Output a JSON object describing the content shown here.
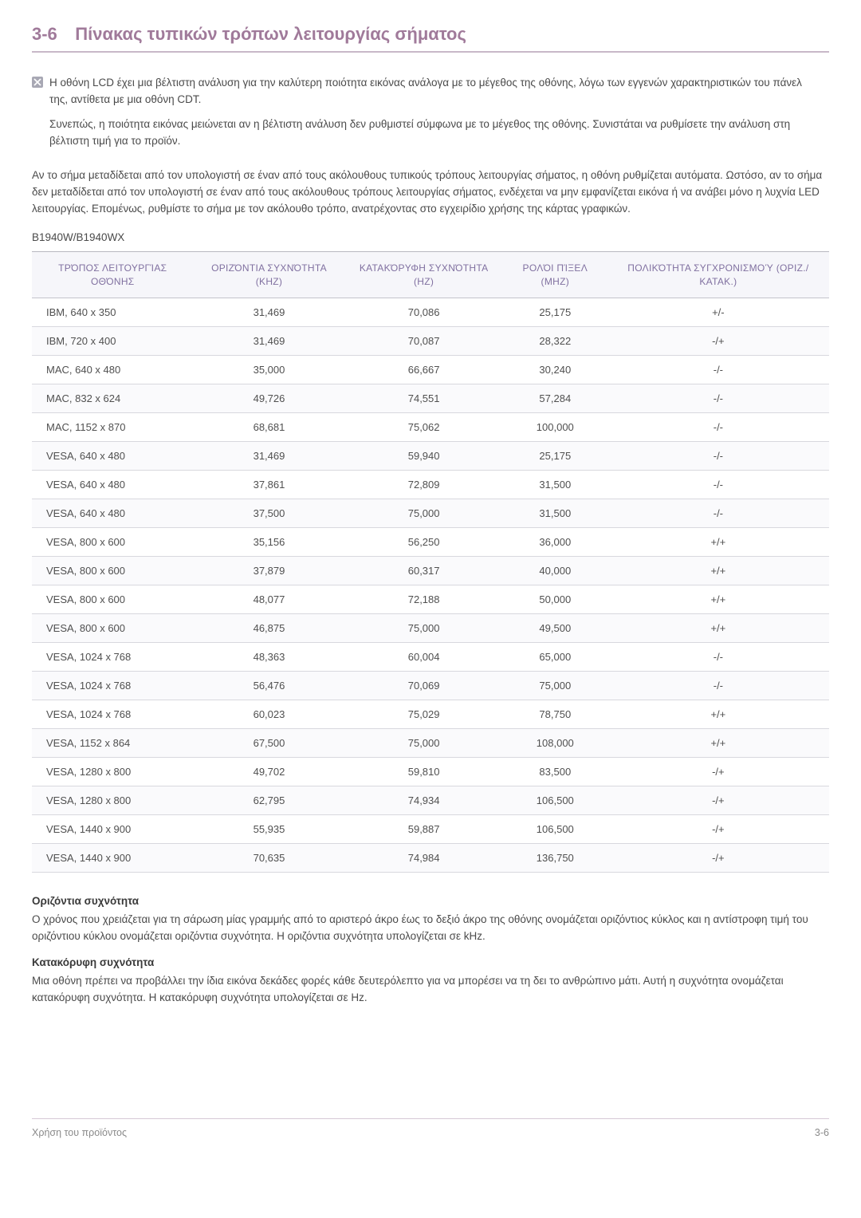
{
  "heading": {
    "number": "3-6",
    "title": "Πίνακας τυπικών τρόπων λειτουργίας σήματος"
  },
  "note": {
    "para1": "Η οθόνη LCD έχει μια βέλτιστη ανάλυση για την καλύτερη ποιότητα εικόνας ανάλογα με το μέγεθος της οθόνης, λόγω των εγγενών χαρακτηριστικών του πάνελ της, αντίθετα με μια οθόνη CDT.",
    "para2": "Συνεπώς, η ποιότητα εικόνας μειώνεται αν η βέλτιστη ανάλυση δεν ρυθμιστεί σύμφωνα με το μέγεθος της οθόνης. Συνιστάται να ρυθμίσετε την ανάλυση στη βέλτιστη τιμή για το προϊόν."
  },
  "bodyPara": "Αν το σήμα μεταδίδεται από τον υπολογιστή σε έναν από τους ακόλουθους τυπικούς τρόπους λειτουργίας σήματος, η οθόνη ρυθμίζεται αυτόματα. Ωστόσο, αν το σήμα δεν μεταδίδεται από τον υπολογιστή σε έναν από τους ακόλουθους τρόπους λειτουργίας σήματος, ενδέχεται να μην εμφανίζεται εικόνα ή να ανάβει μόνο η λυχνία LED λειτουργίας. Επομένως, ρυθμίστε το σήμα με τον ακόλουθο τρόπο, ανατρέχοντας στο εγχειρίδιο χρήσης της κάρτας γραφικών.",
  "modelLabel": "B1940W/B1940WX",
  "table": {
    "columns": [
      "ΤΡΌΠΟΣ ΛΕΙΤΟΥΡΓΊΑΣ ΟΘΌΝΗΣ",
      "ΟΡΙΖΌΝΤΙΑ ΣΥΧΝΌΤΗΤΑ (KHZ)",
      "ΚΑΤΑΚΌΡΥΦΗ ΣΥΧΝΌΤΗΤΑ (HZ)",
      "ΡΟΛΌΙ ΠΊΞΕΛ (MHZ)",
      "ΠΟΛΙΚΌΤΗΤΑ ΣΥΓΧΡΟΝΙΣΜΟΎ (ΟΡΙΖ./ΚΑΤΑΚ.)"
    ],
    "rows": [
      [
        "IBM, 640 x 350",
        "31,469",
        "70,086",
        "25,175",
        "+/-"
      ],
      [
        "IBM, 720 x 400",
        "31,469",
        "70,087",
        "28,322",
        "-/+"
      ],
      [
        "MAC, 640 x 480",
        "35,000",
        "66,667",
        "30,240",
        "-/-"
      ],
      [
        "MAC, 832 x 624",
        "49,726",
        "74,551",
        "57,284",
        "-/-"
      ],
      [
        "MAC, 1152 x 870",
        "68,681",
        "75,062",
        "100,000",
        "-/-"
      ],
      [
        "VESA, 640 x 480",
        "31,469",
        "59,940",
        "25,175",
        "-/-"
      ],
      [
        "VESA, 640 x 480",
        "37,861",
        "72,809",
        "31,500",
        "-/-"
      ],
      [
        "VESA, 640 x 480",
        "37,500",
        "75,000",
        "31,500",
        "-/-"
      ],
      [
        "VESA, 800 x 600",
        "35,156",
        "56,250",
        "36,000",
        "+/+"
      ],
      [
        "VESA, 800 x 600",
        "37,879",
        "60,317",
        "40,000",
        "+/+"
      ],
      [
        "VESA, 800 x 600",
        "48,077",
        "72,188",
        "50,000",
        "+/+"
      ],
      [
        "VESA, 800 x 600",
        "46,875",
        "75,000",
        "49,500",
        "+/+"
      ],
      [
        "VESA, 1024 x 768",
        "48,363",
        "60,004",
        "65,000",
        "-/-"
      ],
      [
        "VESA, 1024 x 768",
        "56,476",
        "70,069",
        "75,000",
        "-/-"
      ],
      [
        "VESA, 1024 x 768",
        "60,023",
        "75,029",
        "78,750",
        "+/+"
      ],
      [
        "VESA, 1152 x 864",
        "67,500",
        "75,000",
        "108,000",
        "+/+"
      ],
      [
        "VESA, 1280 x 800",
        "49,702",
        "59,810",
        "83,500",
        "-/+"
      ],
      [
        "VESA, 1280 x 800",
        "62,795",
        "74,934",
        "106,500",
        "-/+"
      ],
      [
        "VESA, 1440 x 900",
        "55,935",
        "59,887",
        "106,500",
        "-/+"
      ],
      [
        "VESA, 1440 x 900",
        "70,635",
        "74,984",
        "136,750",
        "-/+"
      ]
    ]
  },
  "defs": {
    "horizHeading": "Οριζόντια συχνότητα",
    "horizPara": "Ο χρόνος που χρειάζεται για τη σάρωση μίας γραμμής από το αριστερό άκρο έως το δεξιό άκρο της οθόνης ονομάζεται οριζόντιος κύκλος και η αντίστροφη τιμή του οριζόντιου κύκλου ονομάζεται οριζόντια συχνότητα. Η οριζόντια συχνότητα υπολογίζεται σε kHz.",
    "vertHeading": "Κατακόρυφη συχνότητα",
    "vertPara": "Μια οθόνη πρέπει να προβάλλει την ίδια εικόνα δεκάδες φορές κάθε δευτερόλεπτο για να μπορέσει να τη δει το ανθρώπινο μάτι. Αυτή η συχνότητα ονομάζεται κατακόρυφη συχνότητα. Η κατακόρυφη συχνότητα υπολογίζεται σε Hz."
  },
  "footer": {
    "left": "Χρήση του προϊόντος",
    "right": "3-6"
  },
  "colors": {
    "headingAccent": "#a07a9a",
    "headingRule": "#c8b8c8",
    "tableHeaderBg": "#f6f6fa",
    "tableHeaderText": "#8070a0",
    "rowBorder": "#d8d8de",
    "bodyText": "#4a4a4a",
    "footerRule": "#d6c8d6",
    "noteIcon": "#a8a8b4"
  }
}
